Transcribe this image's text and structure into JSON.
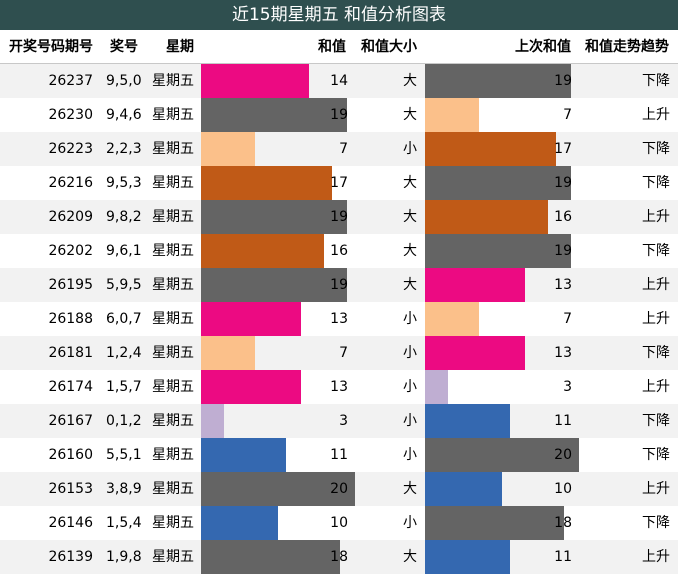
{
  "title": "近15期星期五 和值分析图表",
  "headers": {
    "period": "开奖号码期号",
    "numbers": "奖号",
    "weekday": "星期",
    "sum": "和值",
    "size": "和值大小",
    "prev_sum": "上次和值",
    "trend": "和值走势趋势"
  },
  "colors": {
    "3": "#bfaed2",
    "7": "#fbc08a",
    "10": "#3468b0",
    "11": "#3468b0",
    "13": "#ec0a82",
    "14": "#ec0a82",
    "16": "#c05a17",
    "17": "#c05a17",
    "18": "#646464",
    "19": "#646464",
    "20": "#646464"
  },
  "rows": [
    {
      "period": "26237",
      "numbers": "9,5,0",
      "weekday": "星期五",
      "sum": "14",
      "size": "大",
      "prev_sum": "19",
      "trend": "下降"
    },
    {
      "period": "26230",
      "numbers": "9,4,6",
      "weekday": "星期五",
      "sum": "19",
      "size": "大",
      "prev_sum": "7",
      "trend": "上升"
    },
    {
      "period": "26223",
      "numbers": "2,2,3",
      "weekday": "星期五",
      "sum": "7",
      "size": "小",
      "prev_sum": "17",
      "trend": "下降"
    },
    {
      "period": "26216",
      "numbers": "9,5,3",
      "weekday": "星期五",
      "sum": "17",
      "size": "大",
      "prev_sum": "19",
      "trend": "下降"
    },
    {
      "period": "26209",
      "numbers": "9,8,2",
      "weekday": "星期五",
      "sum": "19",
      "size": "大",
      "prev_sum": "16",
      "trend": "上升"
    },
    {
      "period": "26202",
      "numbers": "9,6,1",
      "weekday": "星期五",
      "sum": "16",
      "size": "大",
      "prev_sum": "19",
      "trend": "下降"
    },
    {
      "period": "26195",
      "numbers": "5,9,5",
      "weekday": "星期五",
      "sum": "19",
      "size": "大",
      "prev_sum": "13",
      "trend": "上升"
    },
    {
      "period": "26188",
      "numbers": "6,0,7",
      "weekday": "星期五",
      "sum": "13",
      "size": "小",
      "prev_sum": "7",
      "trend": "上升"
    },
    {
      "period": "26181",
      "numbers": "1,2,4",
      "weekday": "星期五",
      "sum": "7",
      "size": "小",
      "prev_sum": "13",
      "trend": "下降"
    },
    {
      "period": "26174",
      "numbers": "1,5,7",
      "weekday": "星期五",
      "sum": "13",
      "size": "小",
      "prev_sum": "3",
      "trend": "上升"
    },
    {
      "period": "26167",
      "numbers": "0,1,2",
      "weekday": "星期五",
      "sum": "3",
      "size": "小",
      "prev_sum": "11",
      "trend": "下降"
    },
    {
      "period": "26160",
      "numbers": "5,5,1",
      "weekday": "星期五",
      "sum": "11",
      "size": "小",
      "prev_sum": "20",
      "trend": "下降"
    },
    {
      "period": "26153",
      "numbers": "3,8,9",
      "weekday": "星期五",
      "sum": "20",
      "size": "大",
      "prev_sum": "10",
      "trend": "上升"
    },
    {
      "period": "26146",
      "numbers": "1,5,4",
      "weekday": "星期五",
      "sum": "10",
      "size": "小",
      "prev_sum": "18",
      "trend": "下降"
    },
    {
      "period": "26139",
      "numbers": "1,9,8",
      "weekday": "星期五",
      "sum": "18",
      "size": "大",
      "prev_sum": "11",
      "trend": "上升"
    }
  ]
}
